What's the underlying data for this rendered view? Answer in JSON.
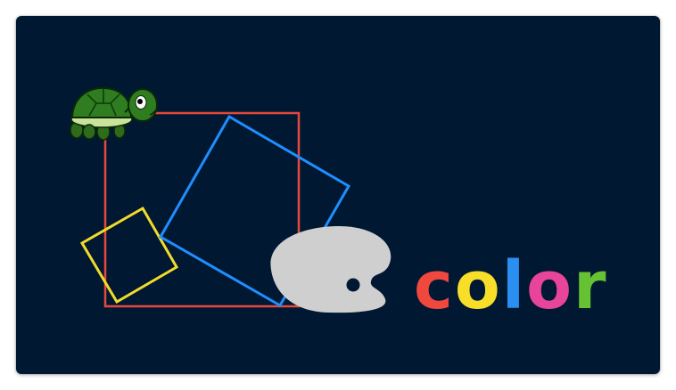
{
  "canvas": {
    "background_color": "#011833"
  },
  "shapes": {
    "red_square": {
      "color": "#e5483d"
    },
    "blue_square": {
      "color": "#1e8fff"
    },
    "yellow_square": {
      "color": "#f2dc2a"
    }
  },
  "sprites": {
    "turtle": {
      "icon": "turtle-icon"
    },
    "palette": {
      "icon": "paint-palette-icon",
      "color": "#cfcfcf"
    }
  },
  "word": {
    "letters": [
      {
        "char": "c",
        "color": "#f0483e"
      },
      {
        "char": "o",
        "color": "#f8de29"
      },
      {
        "char": "l",
        "color": "#2a8ff0"
      },
      {
        "char": "o",
        "color": "#e8449a"
      },
      {
        "char": "r",
        "color": "#66c232"
      }
    ]
  }
}
